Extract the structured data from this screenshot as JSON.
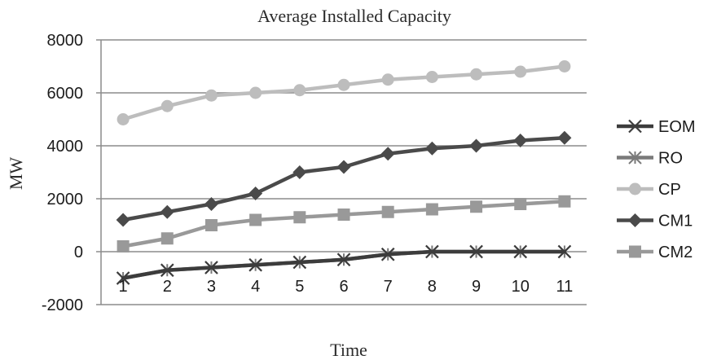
{
  "chart_data": {
    "type": "line",
    "title": "Average Installed Capacity",
    "xlabel": "Time",
    "ylabel": "MW",
    "x": [
      1,
      2,
      3,
      4,
      5,
      6,
      7,
      8,
      9,
      10,
      11
    ],
    "x_tick_labels": [
      "1",
      "2",
      "3",
      "4",
      "5",
      "6",
      "7",
      "8",
      "9",
      "10",
      "11"
    ],
    "ylim": [
      -2000,
      8000
    ],
    "y_ticks": [
      -2000,
      0,
      2000,
      4000,
      6000,
      8000
    ],
    "y_tick_labels": [
      "-2000",
      "0",
      "2000",
      "4000",
      "6000",
      "8000"
    ],
    "grid": "horizontal",
    "legend_position": "right",
    "series": [
      {
        "name": "EOM",
        "color": "#3c3c3c",
        "marker": "x",
        "values": [
          -1000,
          -700,
          -600,
          -500,
          -400,
          -300,
          -100,
          0,
          0,
          0,
          0
        ]
      },
      {
        "name": "RO",
        "color": "#7a7a7a",
        "marker": "asterisk",
        "values": [
          -1000,
          -700,
          -600,
          -500,
          -400,
          -300,
          -100,
          0,
          0,
          0,
          0
        ]
      },
      {
        "name": "CP",
        "color": "#bdbdbd",
        "marker": "circle",
        "values": [
          5000,
          5500,
          5900,
          6000,
          6100,
          6300,
          6500,
          6600,
          6700,
          6800,
          7000
        ]
      },
      {
        "name": "CM1",
        "color": "#4a4a4a",
        "marker": "diamond",
        "values": [
          1200,
          1500,
          1800,
          2200,
          3000,
          3200,
          3700,
          3900,
          4000,
          4200,
          4300
        ]
      },
      {
        "name": "CM2",
        "color": "#999999",
        "marker": "square",
        "values": [
          200,
          500,
          1000,
          1200,
          1300,
          1400,
          1500,
          1600,
          1700,
          1800,
          1900
        ]
      }
    ]
  }
}
